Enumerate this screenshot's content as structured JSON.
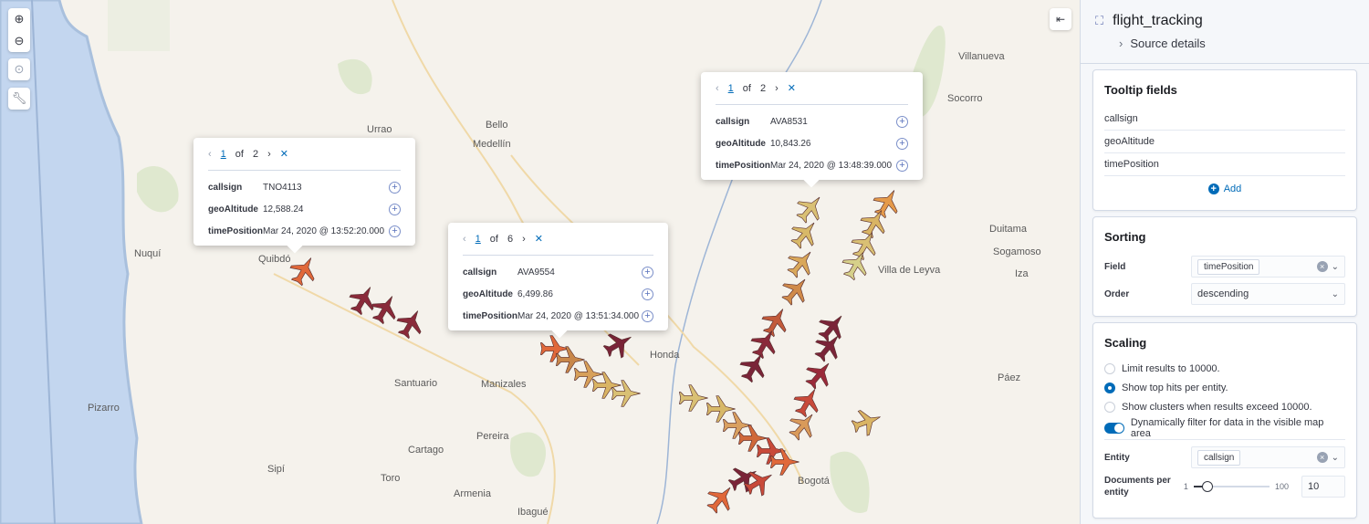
{
  "map": {
    "controls": [
      {
        "name": "zoom-in",
        "icon": "plus-circle-icon"
      },
      {
        "name": "zoom-out",
        "icon": "minus-circle-icon"
      },
      {
        "name": "locate",
        "icon": "crosshair-icon"
      },
      {
        "name": "tools",
        "icon": "wrench-icon"
      }
    ],
    "collapse_icon": "menu-collapse-icon",
    "cities": [
      "Urrao",
      "Bello",
      "Medellín",
      "Nuquí",
      "Quibdó",
      "Santuario",
      "Manizales",
      "Pereira",
      "Cartago",
      "Pizarro",
      "Sipí",
      "Toro",
      "Armenia",
      "Ibagué",
      "Honda",
      "Villanueva",
      "Socorro",
      "Duitama",
      "Sogamoso",
      "Villa de Leyva",
      "Iza",
      "Páez",
      "Bogotá"
    ],
    "tooltips": [
      {
        "page": "1",
        "of": "of",
        "total": "2",
        "rows": [
          {
            "k": "callsign",
            "v": "TNO4113"
          },
          {
            "k": "geoAltitude",
            "v": "12,588.24"
          },
          {
            "k": "timePosition",
            "v": "Mar 24, 2020 @ 13:52:20.000"
          }
        ]
      },
      {
        "page": "1",
        "of": "of",
        "total": "6",
        "rows": [
          {
            "k": "callsign",
            "v": "AVA9554"
          },
          {
            "k": "geoAltitude",
            "v": "6,499.86"
          },
          {
            "k": "timePosition",
            "v": "Mar 24, 2020 @ 13:51:34.000"
          }
        ]
      },
      {
        "page": "1",
        "of": "of",
        "total": "2",
        "rows": [
          {
            "k": "callsign",
            "v": "AVA8531"
          },
          {
            "k": "geoAltitude",
            "v": "10,843.26"
          },
          {
            "k": "timePosition",
            "v": "Mar 24, 2020 @ 13:48:39.000"
          }
        ]
      }
    ]
  },
  "panel": {
    "title": "flight_tracking",
    "source_details": "Source details",
    "tooltip_fields": {
      "title": "Tooltip fields",
      "fields": [
        "callsign",
        "geoAltitude",
        "timePosition"
      ],
      "add": "Add"
    },
    "sorting": {
      "title": "Sorting",
      "field_label": "Field",
      "field_value": "timePosition",
      "order_label": "Order",
      "order_value": "descending"
    },
    "scaling": {
      "title": "Scaling",
      "options": [
        {
          "label": "Limit results to 10000.",
          "selected": false
        },
        {
          "label": "Show top hits per entity.",
          "selected": true
        },
        {
          "label": "Show clusters when results exceed 10000.",
          "selected": false
        }
      ],
      "dynamic_filter": {
        "label": "Dynamically filter for data in the visible map area",
        "on": true
      },
      "entity_label": "Entity",
      "entity_value": "callsign",
      "docs_label": "Documents per entity",
      "docs_min": "1",
      "docs_max": "100",
      "docs_value": "10"
    }
  },
  "colors": {
    "accent": "#006bb8",
    "water": "#c3d6ef",
    "land": "#f5f2ec",
    "park": "#dfe8cf"
  }
}
